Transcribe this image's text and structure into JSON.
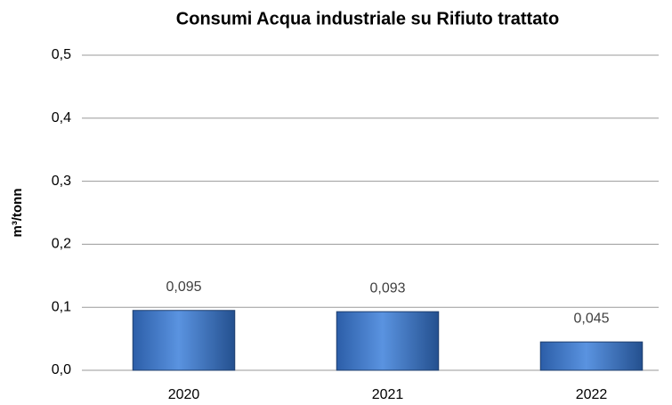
{
  "chart_data": {
    "type": "bar",
    "title": "Consumi Acqua industriale su Rifiuto trattato",
    "y_label": "m³/tonn",
    "categories": [
      "2020",
      "2021",
      "2022"
    ],
    "values": [
      0.095,
      0.093,
      0.045
    ],
    "value_labels": [
      "0,095",
      "0,093",
      "0,045"
    ],
    "color": "#3f78c8",
    "ylim": [
      0,
      0.5
    ],
    "yticks": [
      {
        "value": 0,
        "label": "0,0"
      },
      {
        "value": 0.1,
        "label": "0,1"
      },
      {
        "value": 0.2,
        "label": "0,2"
      },
      {
        "value": 0.3,
        "label": "0,3"
      },
      {
        "value": 0.4,
        "label": "0,4"
      },
      {
        "value": 0.5,
        "label": "0,5"
      }
    ],
    "grid": true
  }
}
